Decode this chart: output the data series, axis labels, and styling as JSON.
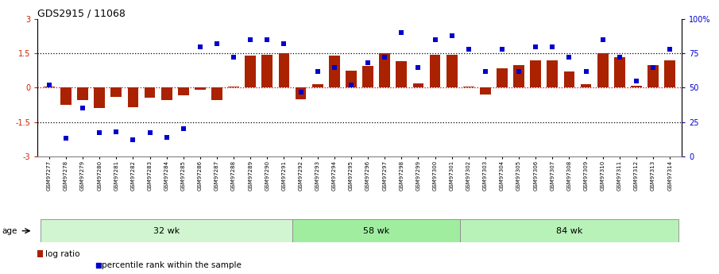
{
  "title": "GDS2915 / 11068",
  "samples": [
    "GSM97277",
    "GSM97278",
    "GSM97279",
    "GSM97280",
    "GSM97281",
    "GSM97282",
    "GSM97283",
    "GSM97284",
    "GSM97285",
    "GSM97286",
    "GSM97287",
    "GSM97288",
    "GSM97289",
    "GSM97290",
    "GSM97291",
    "GSM97292",
    "GSM97293",
    "GSM97294",
    "GSM97295",
    "GSM97296",
    "GSM97297",
    "GSM97298",
    "GSM97299",
    "GSM97300",
    "GSM97301",
    "GSM97302",
    "GSM97303",
    "GSM97304",
    "GSM97305",
    "GSM97306",
    "GSM97307",
    "GSM97308",
    "GSM97309",
    "GSM97310",
    "GSM97311",
    "GSM97312",
    "GSM97313",
    "GSM97314"
  ],
  "log_ratio": [
    0.05,
    -0.75,
    -0.55,
    -0.9,
    -0.4,
    -0.85,
    -0.45,
    -0.55,
    -0.35,
    -0.1,
    -0.55,
    0.05,
    1.4,
    1.45,
    1.5,
    -0.5,
    0.15,
    1.4,
    0.75,
    0.95,
    1.5,
    1.15,
    0.2,
    1.45,
    1.45,
    0.05,
    -0.3,
    0.85,
    1.0,
    1.2,
    1.2,
    0.7,
    0.15,
    1.5,
    1.35,
    0.1,
    1.0,
    1.2
  ],
  "percentile": [
    52,
    13,
    35,
    17,
    18,
    12,
    17,
    14,
    20,
    80,
    82,
    72,
    85,
    85,
    82,
    47,
    62,
    65,
    52,
    68,
    72,
    90,
    65,
    85,
    88,
    78,
    62,
    78,
    62,
    80,
    80,
    72,
    62,
    85,
    72,
    55,
    65,
    78
  ],
  "group_boundaries": [
    0,
    15,
    25,
    38
  ],
  "group_labels": [
    "32 wk",
    "58 wk",
    "84 wk"
  ],
  "group_colors": [
    "#d0f5d0",
    "#a0eda0",
    "#b8f2b8"
  ],
  "ylim_left": [
    -3,
    3
  ],
  "ylim_right": [
    0,
    100
  ],
  "bar_color": "#aa2200",
  "scatter_color": "#0000cc",
  "zero_line_color": "#cc0000",
  "dotline_color": "#000000",
  "legend_bar_label": "log ratio",
  "legend_scatter_label": "percentile rank within the sample",
  "age_label": "age"
}
